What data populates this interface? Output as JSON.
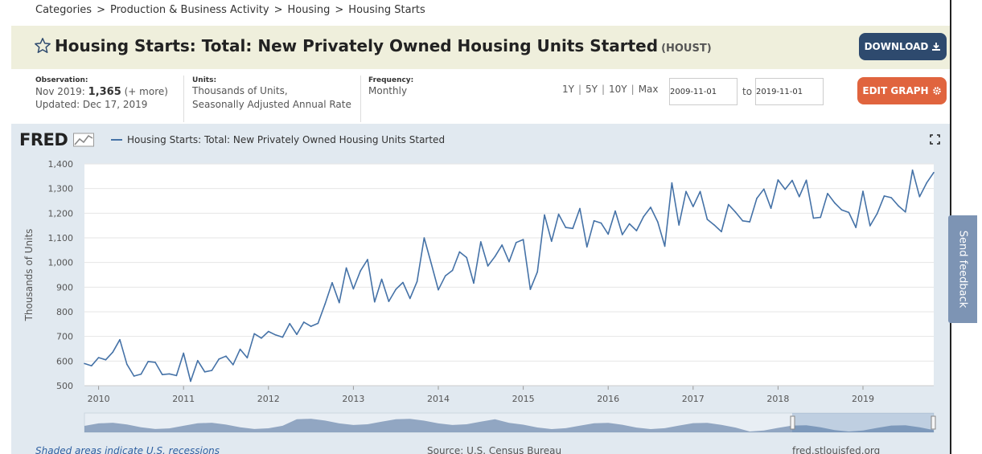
{
  "breadcrumb": [
    "Categories",
    "Production & Business Activity",
    "Housing",
    "Housing Starts"
  ],
  "breadcrumb_sep": ">",
  "series": {
    "title": "Housing Starts: Total: New Privately Owned Housing Units Started",
    "id": "(HOUST)"
  },
  "buttons": {
    "download": "DOWNLOAD",
    "edit_graph": "EDIT GRAPH"
  },
  "observation": {
    "label": "Observation:",
    "date": "Nov 2019:",
    "value": "1,365",
    "more": "(+ more)",
    "updated": "Updated: Dec 17, 2019"
  },
  "units": {
    "label": "Units:",
    "line1": "Thousands of Units,",
    "line2": "Seasonally Adjusted Annual Rate"
  },
  "frequency": {
    "label": "Frequency:",
    "value": "Monthly"
  },
  "ranges": [
    "1Y",
    "5Y",
    "10Y",
    "Max"
  ],
  "dates": {
    "start": "2009-11-01",
    "to": "to",
    "end": "2019-11-01"
  },
  "logo": "FRED",
  "footer": {
    "recessions": "Shaded areas indicate U.S. recessions",
    "source": "Source: U.S. Census Bureau",
    "site": "fred.stlouisfed.org"
  },
  "feedback": "Send feedback",
  "colors": {
    "line": "#4572a7",
    "download": "#2e4a6e",
    "edit": "#e0643e",
    "title_bg": "#efefdc",
    "graph_bg": "#e1e9f0"
  },
  "chart_data": {
    "type": "line",
    "title": "Housing Starts: Total: New Privately Owned Housing Units Started",
    "xlabel": "",
    "ylabel": "Thousands of Units",
    "ylim": [
      500,
      1400
    ],
    "yticks": [
      "500",
      "600",
      "700",
      "800",
      "900",
      "1,000",
      "1,100",
      "1,200",
      "1,300",
      "1,400"
    ],
    "xticks": [
      "2010",
      "2011",
      "2012",
      "2013",
      "2014",
      "2015",
      "2016",
      "2017",
      "2018",
      "2019"
    ],
    "x_start": "2009-11",
    "x_end": "2019-11",
    "series": [
      {
        "name": "Housing Starts: Total: New Privately Owned Housing Units Started",
        "values": [
          590,
          581,
          614,
          605,
          636,
          687,
          587,
          539,
          547,
          598,
          595,
          545,
          548,
          541,
          632,
          518,
          602,
          556,
          562,
          608,
          620,
          585,
          648,
          613,
          711,
          693,
          720,
          706,
          697,
          752,
          708,
          758,
          741,
          753,
          832,
          918,
          837,
          978,
          893,
          966,
          1012,
          840,
          932,
          842,
          891,
          919,
          854,
          923,
          1100,
          996,
          889,
          946,
          968,
          1043,
          1020,
          916,
          1084,
          986,
          1024,
          1071,
          1003,
          1081,
          1093,
          891,
          962,
          1193,
          1086,
          1196,
          1142,
          1138,
          1219,
          1063,
          1169,
          1160,
          1115,
          1209,
          1113,
          1157,
          1129,
          1186,
          1224,
          1165,
          1066,
          1323,
          1152,
          1288,
          1227,
          1288,
          1175,
          1152,
          1125,
          1235,
          1204,
          1169,
          1165,
          1260,
          1298,
          1220,
          1335,
          1297,
          1333,
          1267,
          1334,
          1180,
          1183,
          1280,
          1242,
          1213,
          1203,
          1142,
          1289,
          1149,
          1198,
          1270,
          1263,
          1230,
          1205,
          1375,
          1267,
          1323,
          1365
        ]
      }
    ]
  }
}
